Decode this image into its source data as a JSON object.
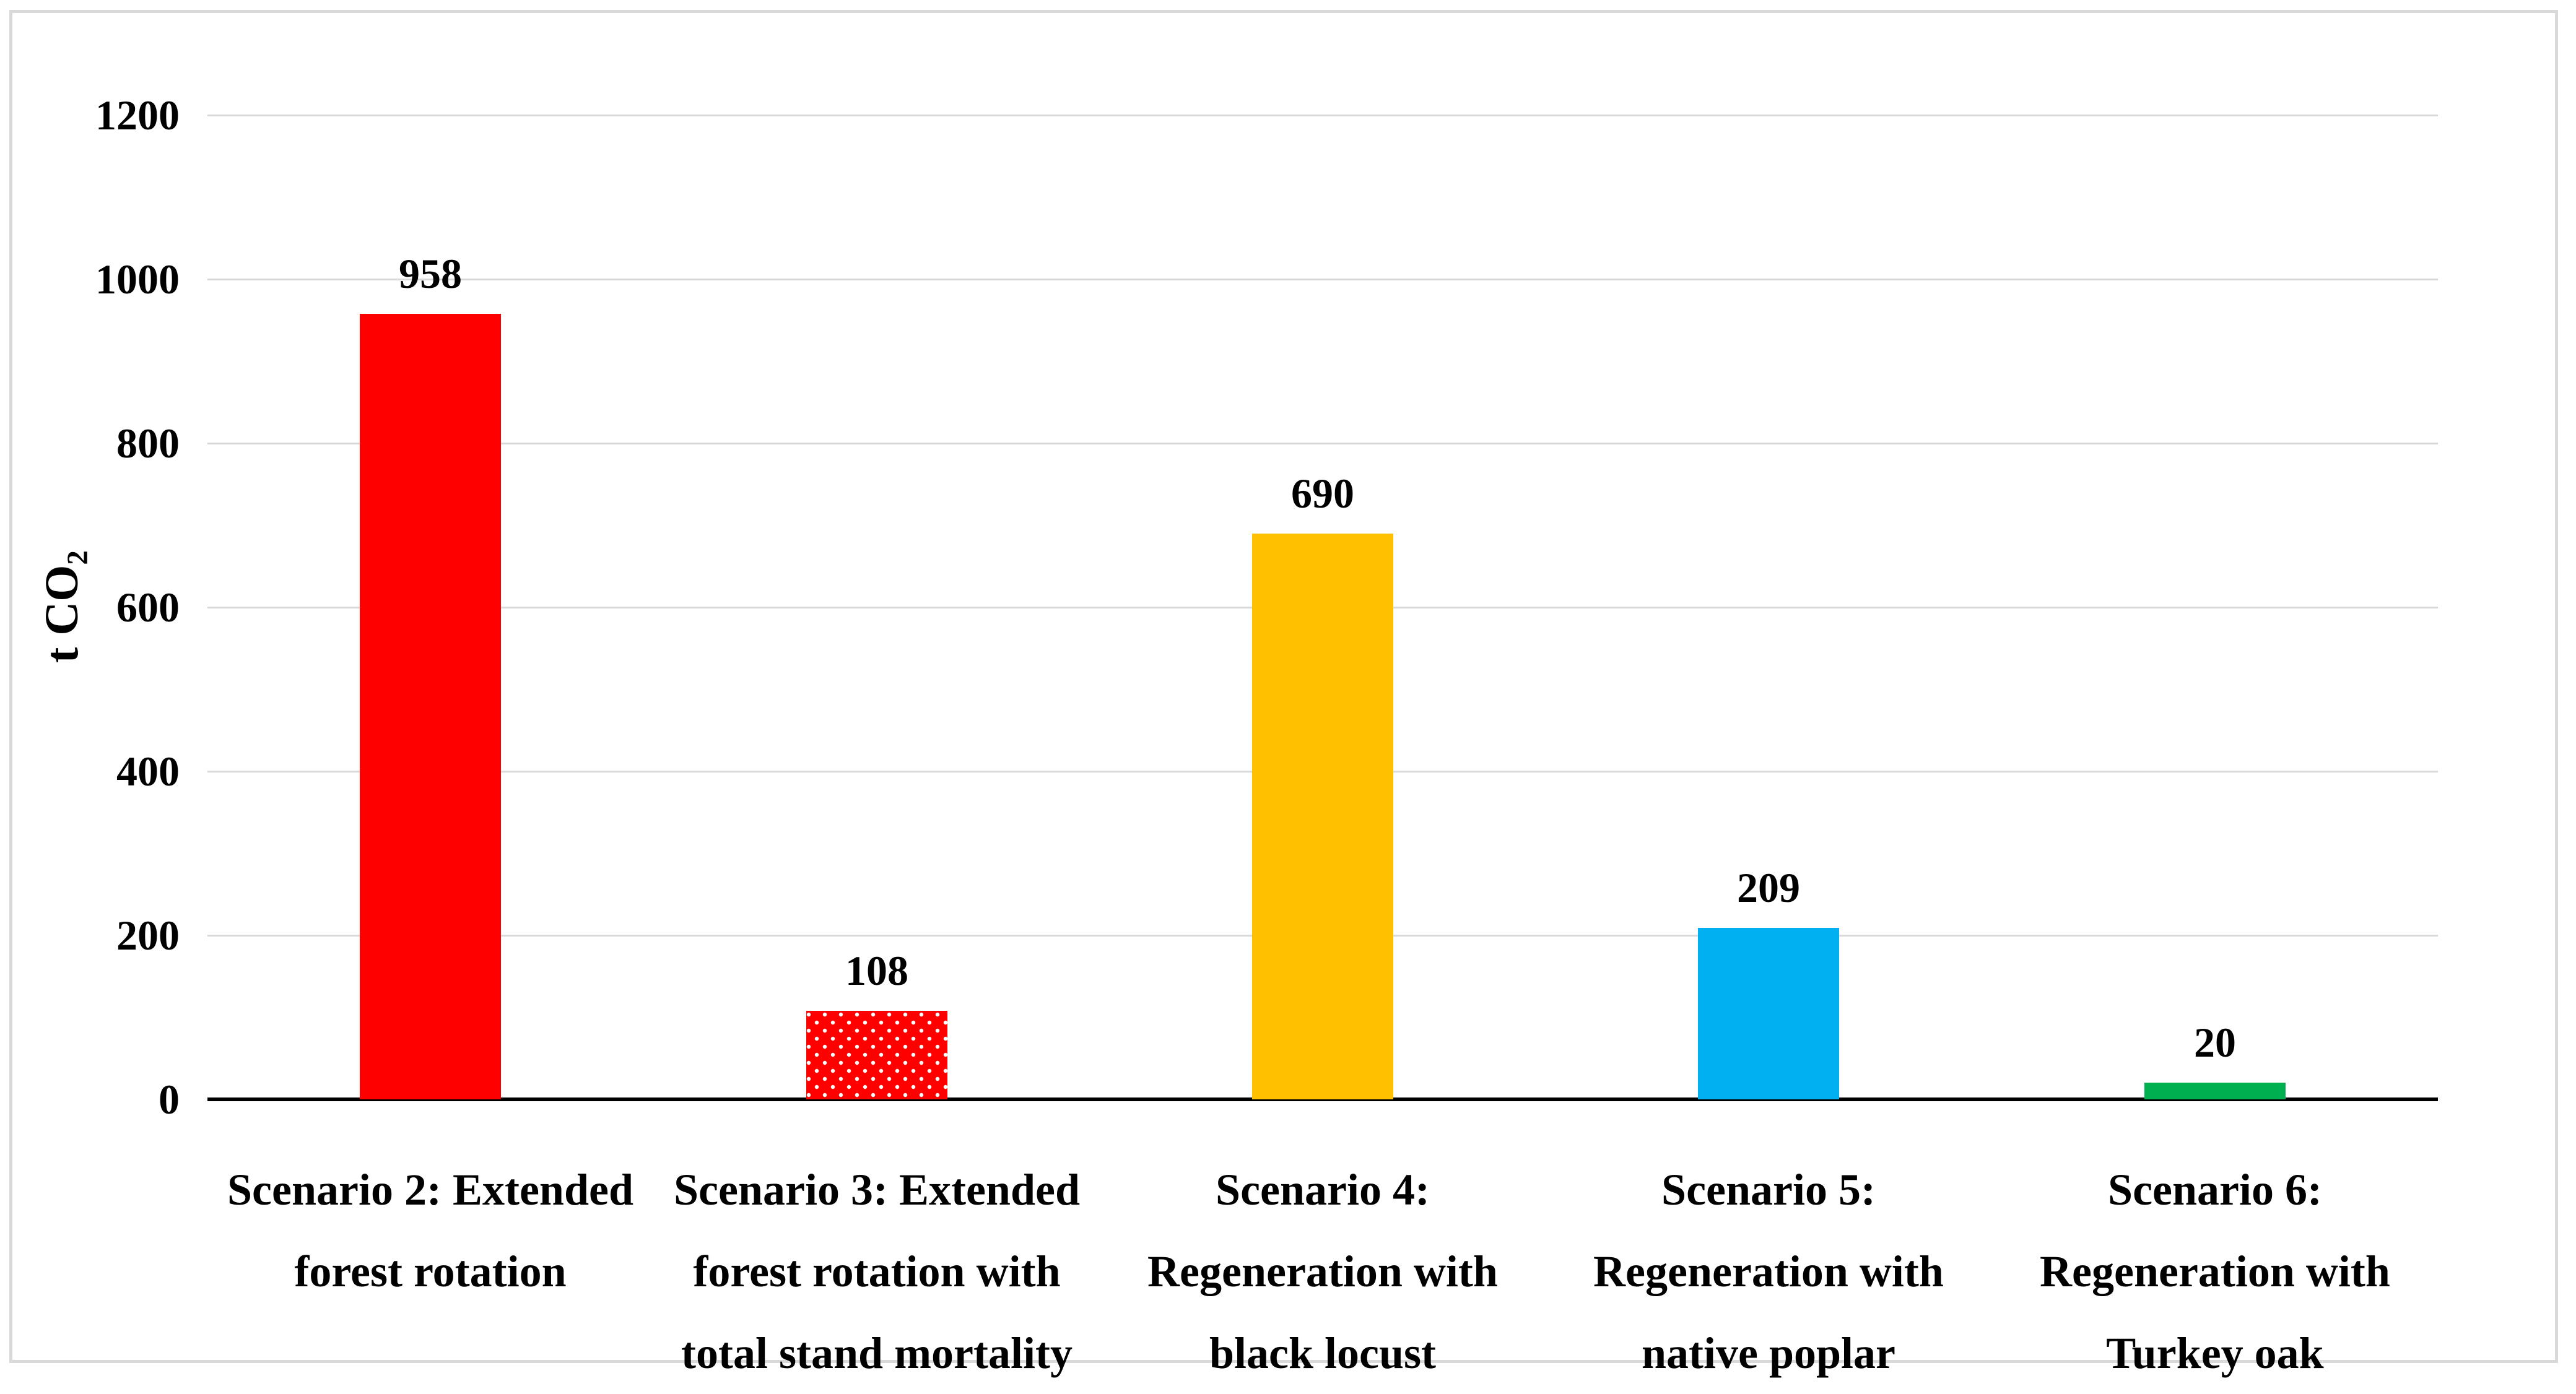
{
  "chart_data": {
    "type": "bar",
    "title": "",
    "ylabel_main": "t CO",
    "ylabel_sub": "2",
    "ymin": 0,
    "ymax": 1200,
    "yticks": [
      0,
      200,
      400,
      600,
      800,
      1000,
      1200
    ],
    "grid": true,
    "legend": false,
    "categories": [
      "Scenario 2: Extended\nforest rotation",
      "Scenario 3: Extended\nforest rotation with\ntotal stand mortality",
      "Scenario 4:\nRegeneration with\nblack locust",
      "Scenario 5:\nRegeneration with\nnative poplar",
      "Scenario 6:\nRegeneration with\nTurkey oak"
    ],
    "values": [
      958,
      108,
      690,
      209,
      20
    ],
    "data_labels": [
      "958",
      "108",
      "690",
      "209",
      "20"
    ],
    "bar_colors": [
      "#FF0000",
      "#FF0000",
      "#FFC000",
      "#00B0F0",
      "#00B050"
    ],
    "bar_patterns": [
      "solid",
      "dots",
      "solid",
      "solid",
      "solid"
    ]
  },
  "colors": {
    "background": "#FFFFFF",
    "chart_border": "#D9D9D9",
    "gridline": "#D9D9D9",
    "axis_line": "#000000",
    "text": "#000000",
    "pattern_dot": "#FFFFFF"
  }
}
